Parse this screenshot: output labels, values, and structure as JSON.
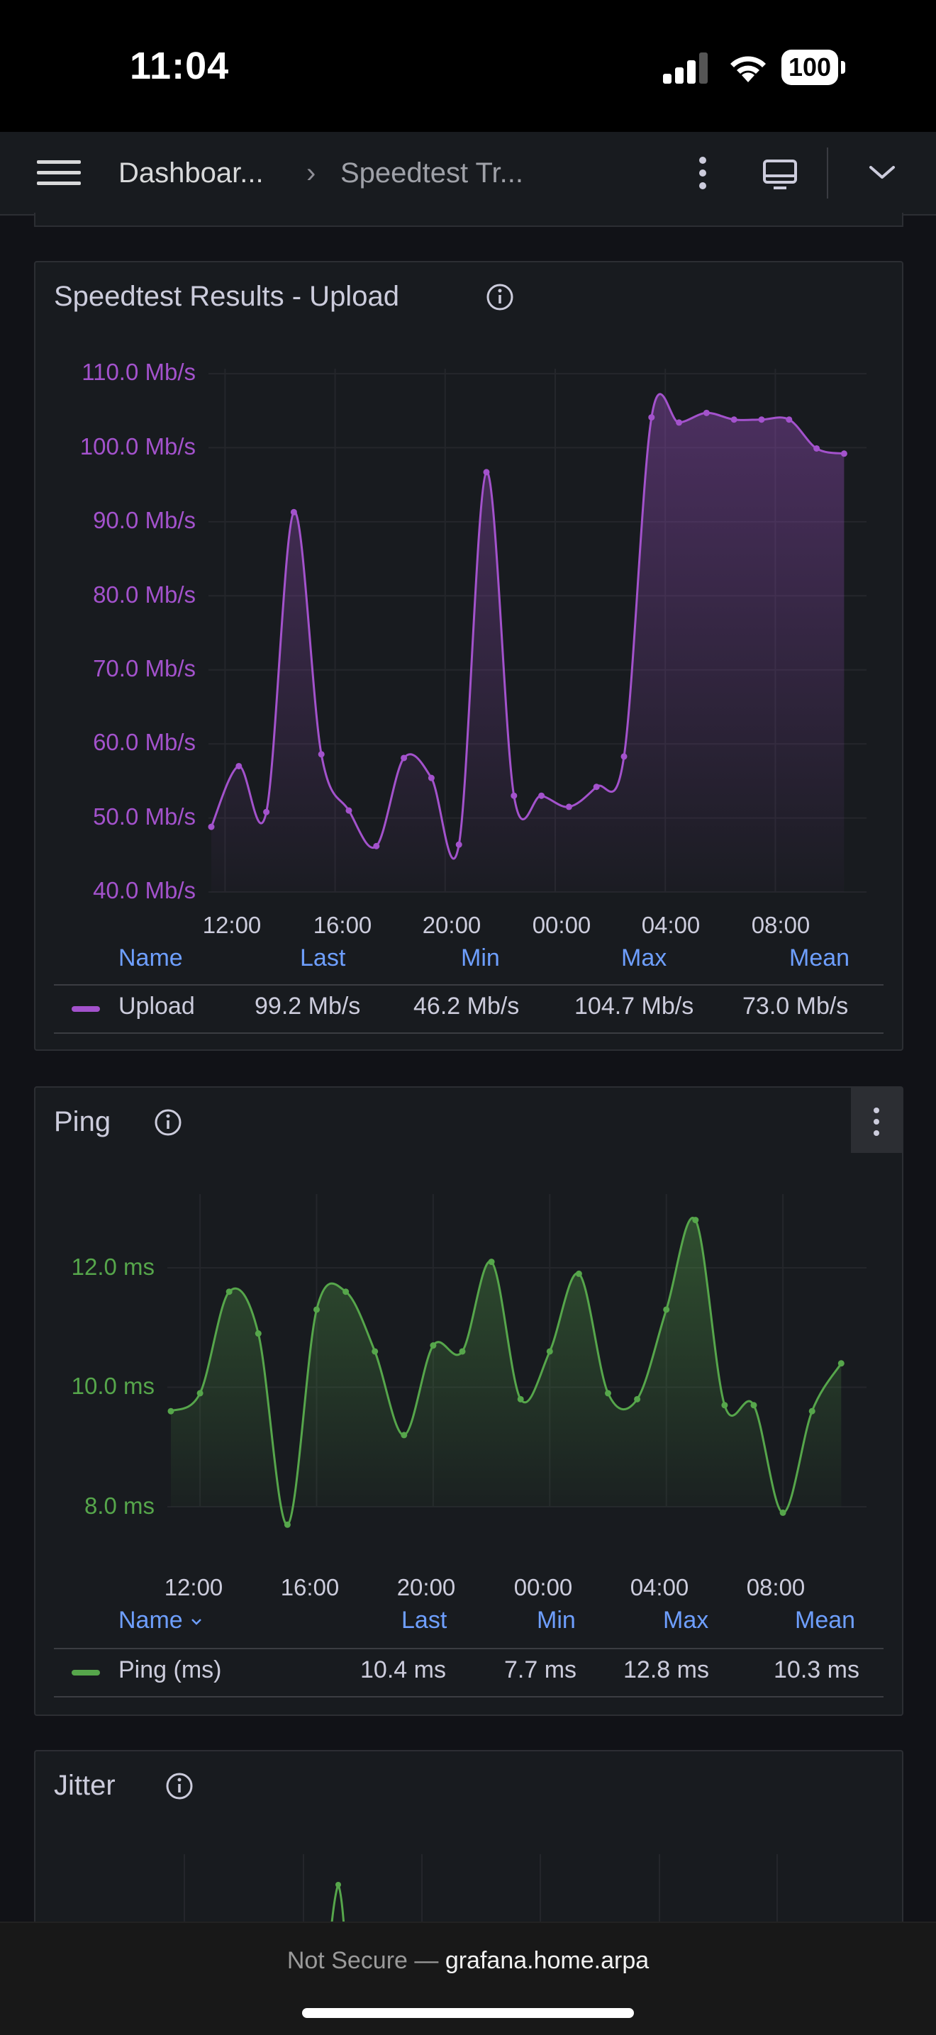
{
  "status": {
    "time": "11:04",
    "battery": "100"
  },
  "nav": {
    "crumb1": "Dashboar...",
    "separator": "›",
    "crumb2": "Speedtest Tr..."
  },
  "panels": {
    "upload": {
      "title": "Speedtest Results - Upload",
      "legend_headers": {
        "name": "Name",
        "last": "Last",
        "min": "Min",
        "max": "Max",
        "mean": "Mean"
      },
      "legend_row": {
        "name": "Upload",
        "last": "99.2 Mb/s",
        "min": "46.2 Mb/s",
        "max": "104.7 Mb/s",
        "mean": "73.0 Mb/s"
      },
      "color": "#a352cc"
    },
    "ping": {
      "title": "Ping",
      "legend_headers": {
        "name": "Name",
        "last": "Last",
        "min": "Min",
        "max": "Max",
        "mean": "Mean"
      },
      "legend_row": {
        "name": "Ping (ms)",
        "last": "10.4 ms",
        "min": "7.7 ms",
        "max": "12.8 ms",
        "mean": "10.3 ms"
      },
      "color": "#56a64b"
    },
    "jitter": {
      "title": "Jitter"
    }
  },
  "chart_data": [
    {
      "type": "area",
      "series": [
        {
          "name": "Upload",
          "color": "#a352cc",
          "x": [
            11.5,
            12.5,
            13.5,
            14.5,
            15.5,
            16.5,
            17.5,
            18.5,
            19.5,
            20.5,
            21.5,
            22.5,
            23.5,
            0.5,
            1.5,
            2.5,
            3.5,
            4.5,
            5.5,
            6.5,
            7.5,
            8.5,
            9.5,
            10.5
          ],
          "values": [
            48.8,
            57.0,
            50.8,
            91.3,
            58.6,
            51.0,
            46.2,
            58.1,
            55.4,
            46.4,
            96.7,
            53.0,
            53.0,
            51.5,
            54.2,
            58.3,
            104.1,
            103.4,
            104.7,
            103.8,
            103.8,
            103.8,
            99.9,
            99.2
          ]
        }
      ],
      "x_ticks": [
        "12:00",
        "16:00",
        "20:00",
        "00:00",
        "04:00",
        "08:00"
      ],
      "y_ticks": [
        "40.0 Mb/s",
        "50.0 Mb/s",
        "60.0 Mb/s",
        "70.0 Mb/s",
        "80.0 Mb/s",
        "90.0 Mb/s",
        "100.0 Mb/s",
        "110.0 Mb/s"
      ],
      "ylim": [
        40,
        110
      ]
    },
    {
      "type": "area",
      "series": [
        {
          "name": "Ping (ms)",
          "color": "#56a64b",
          "x": [
            11.0,
            12.0,
            13.0,
            14.0,
            15.0,
            16.0,
            17.0,
            18.0,
            19.0,
            20.0,
            21.0,
            22.0,
            23.0,
            0.0,
            1.0,
            2.0,
            3.0,
            4.0,
            5.0,
            6.0,
            7.0,
            8.0,
            9.0,
            10.0
          ],
          "values": [
            9.6,
            9.9,
            11.6,
            10.9,
            7.7,
            11.3,
            11.6,
            10.6,
            9.2,
            10.7,
            10.6,
            12.1,
            9.8,
            10.6,
            11.9,
            9.9,
            9.8,
            11.3,
            12.8,
            9.7,
            9.7,
            7.9,
            9.6,
            10.4
          ]
        }
      ],
      "x_ticks": [
        "12:00",
        "16:00",
        "20:00",
        "00:00",
        "04:00",
        "08:00"
      ],
      "y_ticks": [
        "8.0 ms",
        "10.0 ms",
        "12.0 ms"
      ]
    }
  ],
  "footer": {
    "prefix": "Not Secure —",
    "host": "grafana.home.arpa"
  }
}
